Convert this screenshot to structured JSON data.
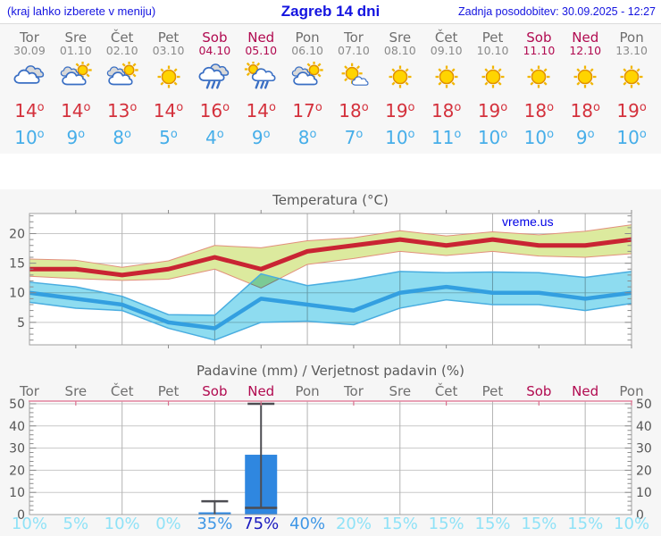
{
  "header": {
    "hint": "(kraj lahko izberete v meniju)",
    "title": "Zagreb 14 dni",
    "updated": "Zadnja posodobitev: 30.09.2025 - 12:27"
  },
  "branding": {
    "watermark": "vreme.us"
  },
  "colors": {
    "link_blue": "#1414e0",
    "temp_max_red": "#d4313c",
    "temp_min_blue": "#46aee9",
    "weekend": "#b10a50",
    "weekday_gray": "#6e6e6e",
    "date_gray": "#8a8a8a",
    "prob_low": "#8fe2f7",
    "prob_mid": "#3f97e6",
    "prob_high": "#1a1abf",
    "bar_blue": "#2f87e0",
    "max_line": "#c92433",
    "max_band_fill": "#dcea9e",
    "max_band_edge": "#e2907c",
    "min_line": "#339fe0",
    "min_band_fill": "#8edcf0",
    "min_band_edge": "#49ade0"
  },
  "forecast": {
    "days": [
      {
        "name": "Tor",
        "date": "30.09",
        "weekend": false,
        "icon": "cloudy",
        "tmax": 14,
        "tmin": 10,
        "prob": 10
      },
      {
        "name": "Sre",
        "date": "01.10",
        "weekend": false,
        "icon": "partly-cloudy",
        "tmax": 14,
        "tmin": 9,
        "prob": 5
      },
      {
        "name": "Čet",
        "date": "02.10",
        "weekend": false,
        "icon": "partly-cloudy",
        "tmax": 13,
        "tmin": 8,
        "prob": 10
      },
      {
        "name": "Pet",
        "date": "03.10",
        "weekend": false,
        "icon": "sunny",
        "tmax": 14,
        "tmin": 5,
        "prob": 0
      },
      {
        "name": "Sob",
        "date": "04.10",
        "weekend": true,
        "icon": "rain",
        "tmax": 16,
        "tmin": 4,
        "prob": 35
      },
      {
        "name": "Ned",
        "date": "05.10",
        "weekend": true,
        "icon": "sun-rain",
        "tmax": 14,
        "tmin": 9,
        "prob": 75
      },
      {
        "name": "Pon",
        "date": "06.10",
        "weekend": false,
        "icon": "partly-cloudy",
        "tmax": 17,
        "tmin": 8,
        "prob": 40
      },
      {
        "name": "Tor",
        "date": "07.10",
        "weekend": false,
        "icon": "mostly-sunny",
        "tmax": 18,
        "tmin": 7,
        "prob": 20
      },
      {
        "name": "Sre",
        "date": "08.10",
        "weekend": false,
        "icon": "sunny",
        "tmax": 19,
        "tmin": 10,
        "prob": 15
      },
      {
        "name": "Čet",
        "date": "09.10",
        "weekend": false,
        "icon": "sunny",
        "tmax": 18,
        "tmin": 11,
        "prob": 15
      },
      {
        "name": "Pet",
        "date": "10.10",
        "weekend": false,
        "icon": "sunny",
        "tmax": 19,
        "tmin": 10,
        "prob": 15
      },
      {
        "name": "Sob",
        "date": "11.10",
        "weekend": true,
        "icon": "sunny",
        "tmax": 18,
        "tmin": 10,
        "prob": 15
      },
      {
        "name": "Ned",
        "date": "12.10",
        "weekend": true,
        "icon": "sunny",
        "tmax": 18,
        "tmin": 9,
        "prob": 15
      },
      {
        "name": "Pon",
        "date": "13.10",
        "weekend": false,
        "icon": "sunny",
        "tmax": 19,
        "tmin": 10,
        "prob": 10
      }
    ]
  },
  "chart_data": [
    {
      "type": "line",
      "title": "Temperatura (°C)",
      "categories": [
        "Tor 30.09",
        "Sre 01.10",
        "Čet 02.10",
        "Pet 03.10",
        "Sob 04.10",
        "Ned 05.10",
        "Pon 06.10",
        "Tor 07.10",
        "Sre 08.10",
        "Čet 09.10",
        "Pet 10.10",
        "Sob 11.10",
        "Ned 12.10",
        "Pon 13.10"
      ],
      "ylim": [
        1.2,
        23.4
      ],
      "yticks": [
        5,
        10,
        15,
        20
      ],
      "grid": true,
      "watermark": "vreme.us",
      "series": [
        {
          "name": "max-temp",
          "kind": "line",
          "values": [
            14,
            14,
            13,
            14,
            16,
            14,
            17,
            18,
            19,
            18,
            19,
            18,
            18,
            19
          ]
        },
        {
          "name": "max-temp-range",
          "kind": "band",
          "upper": [
            15.7,
            15.5,
            14.3,
            15.4,
            18,
            17.6,
            18.8,
            19.3,
            20.5,
            19.6,
            20.3,
            19.8,
            20.4,
            21.5
          ],
          "lower": [
            12.8,
            12.4,
            12.1,
            12.3,
            14,
            10.8,
            14.8,
            15.8,
            17,
            16.3,
            17,
            16.2,
            16,
            16.6
          ]
        },
        {
          "name": "min-temp",
          "kind": "line",
          "values": [
            10,
            9,
            8,
            5,
            4,
            9,
            8,
            7,
            10,
            11,
            10,
            10,
            9,
            10
          ]
        },
        {
          "name": "min-temp-range",
          "kind": "band",
          "upper": [
            11.8,
            11,
            9.4,
            6.3,
            6.2,
            13.2,
            11.2,
            12.2,
            13.6,
            13.4,
            13.5,
            13.4,
            12.6,
            13.6
          ],
          "lower": [
            8.4,
            7.4,
            7,
            4,
            2,
            5,
            5.2,
            4.6,
            7.4,
            8.8,
            8,
            8,
            7,
            8.2
          ]
        }
      ]
    },
    {
      "type": "bar",
      "title": "Padavine (mm) / Verjetnost padavin (%)",
      "categories": [
        "Tor",
        "Sre",
        "Čet",
        "Pet",
        "Sob",
        "Ned",
        "Pon",
        "Tor",
        "Sre",
        "Čet",
        "Pet",
        "Sob",
        "Ned",
        "Pon"
      ],
      "values": [
        0,
        0,
        0,
        0,
        1,
        27,
        0,
        0,
        0,
        0,
        0,
        0,
        0,
        0
      ],
      "whiskers": [
        null,
        null,
        null,
        null,
        {
          "min": 0,
          "max": 6
        },
        {
          "min": 3,
          "max": 50
        },
        null,
        null,
        null,
        null,
        null,
        null,
        null,
        null
      ],
      "probabilities_percent": [
        10,
        5,
        10,
        0,
        35,
        75,
        40,
        20,
        15,
        15,
        15,
        15,
        15,
        10
      ],
      "ylim": [
        0,
        51.2
      ],
      "yticks": [
        0,
        10,
        20,
        30,
        40,
        50
      ],
      "grid": true
    }
  ]
}
